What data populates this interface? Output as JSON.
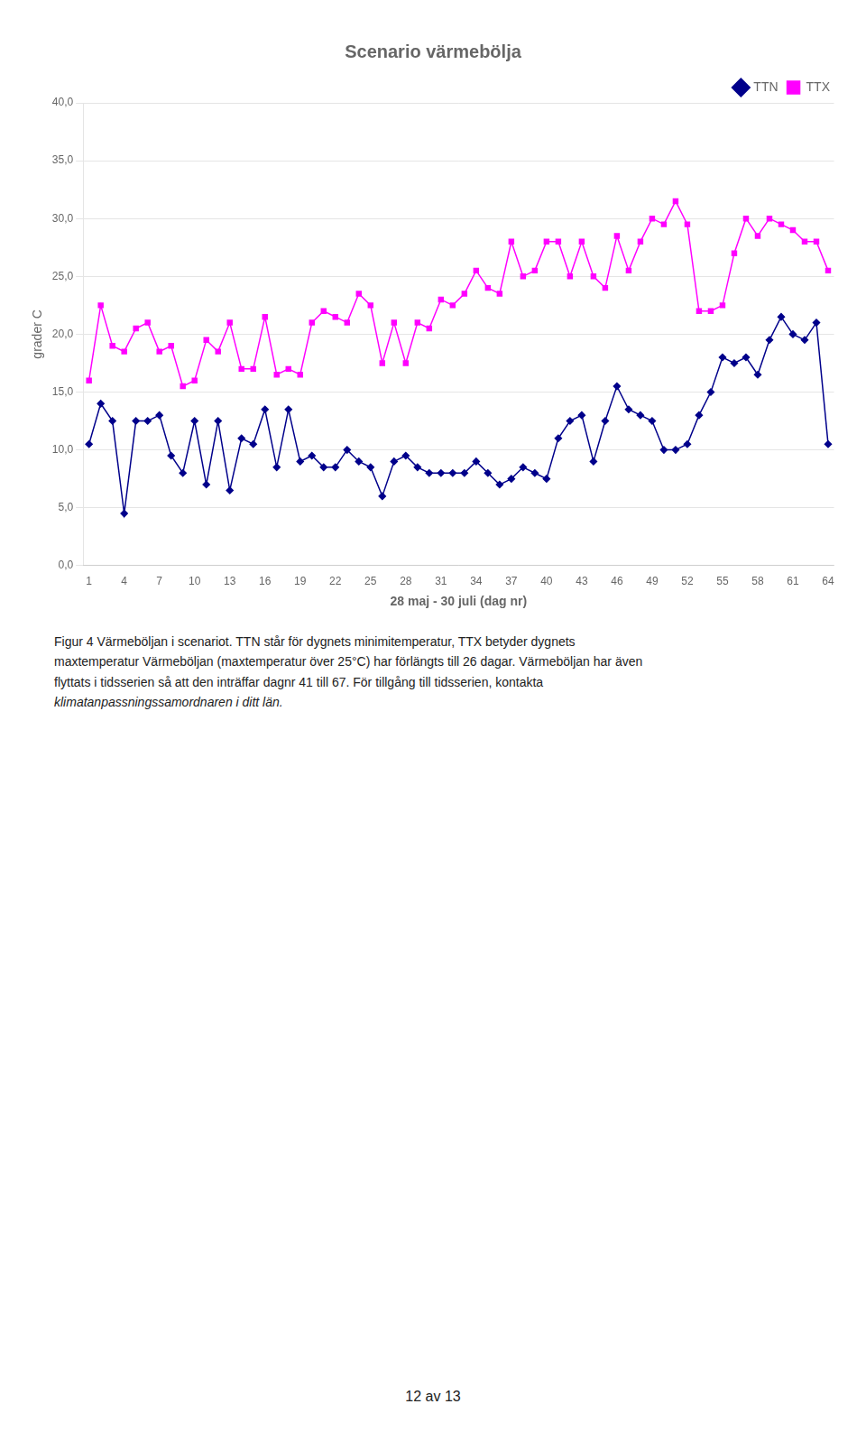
{
  "chart_data": {
    "type": "line",
    "title": "Scenario värmebölja",
    "x_label": "28 maj - 30 juli (dag nr)",
    "y_label": "grader C",
    "x": [
      1,
      2,
      3,
      4,
      5,
      6,
      7,
      8,
      9,
      10,
      11,
      12,
      13,
      14,
      15,
      16,
      17,
      18,
      19,
      20,
      21,
      22,
      23,
      24,
      25,
      26,
      27,
      28,
      29,
      30,
      31,
      32,
      33,
      34,
      35,
      36,
      37,
      38,
      39,
      40,
      41,
      42,
      43,
      44,
      45,
      46,
      47,
      48,
      49,
      50,
      51,
      52,
      53,
      54,
      55,
      56,
      57,
      58,
      59,
      60,
      61,
      62,
      63,
      64
    ],
    "series": [
      {
        "name": "TTN",
        "color": "#00008B",
        "marker": "diamond",
        "line_style": "solid",
        "values": [
          10.5,
          14.0,
          12.5,
          4.5,
          12.5,
          12.5,
          13.0,
          9.5,
          8.0,
          12.5,
          7.0,
          12.5,
          6.5,
          11.0,
          10.5,
          13.5,
          8.5,
          13.5,
          9.0,
          9.5,
          8.5,
          8.5,
          10.0,
          9.0,
          8.5,
          6.0,
          9.0,
          9.5,
          8.5,
          8.0,
          8.0,
          8.0,
          8.0,
          9.0,
          8.0,
          7.0,
          7.5,
          8.5,
          8.0,
          7.5,
          11.0,
          12.5,
          13.0,
          9.0,
          12.5,
          15.5,
          13.5,
          13.0,
          12.5,
          10.0,
          10.0,
          10.5,
          13.0,
          15.0,
          18.0,
          17.5,
          18.0,
          16.5,
          19.5,
          21.5,
          20.0,
          19.5,
          21.0,
          10.5
        ]
      },
      {
        "name": "TTX",
        "color": "#FF00FF",
        "marker": "square",
        "line_style": "solid",
        "values": [
          16.0,
          22.5,
          19.0,
          18.5,
          20.5,
          21.0,
          18.5,
          19.0,
          15.5,
          16.0,
          19.5,
          18.5,
          21.0,
          17.0,
          17.0,
          21.5,
          16.5,
          17.0,
          16.5,
          21.0,
          22.0,
          21.5,
          21.0,
          23.5,
          22.5,
          17.5,
          21.0,
          17.5,
          21.0,
          20.5,
          23.0,
          22.5,
          23.5,
          25.5,
          24.0,
          23.5,
          28.0,
          25.0,
          25.5,
          28.0,
          28.0,
          25.0,
          28.0,
          25.0,
          24.0,
          28.5,
          25.5,
          28.0,
          30.0,
          29.5,
          31.5,
          29.5,
          22.0,
          22.0,
          22.5,
          27.0,
          30.0,
          28.5,
          30.0,
          29.5,
          29.0,
          28.0,
          28.0,
          25.5
        ]
      }
    ],
    "xlim": [
      0.5,
      64.5
    ],
    "xticks": [
      1,
      4,
      7,
      10,
      13,
      16,
      19,
      22,
      25,
      28,
      31,
      34,
      37,
      40,
      43,
      46,
      49,
      52,
      55,
      58,
      61,
      64
    ],
    "ylim": [
      0.0,
      40.0
    ],
    "yticks": [
      {
        "value": 0,
        "label": "0,0"
      },
      {
        "value": 5,
        "label": "5,0"
      },
      {
        "value": 10,
        "label": "10,0"
      },
      {
        "value": 15,
        "label": "15,0"
      },
      {
        "value": 20,
        "label": "20,0"
      },
      {
        "value": 25,
        "label": "25,0"
      },
      {
        "value": 30,
        "label": "30,0"
      },
      {
        "value": 35,
        "label": "35,0"
      },
      {
        "value": 40,
        "label": "40,0"
      }
    ],
    "grid": "y",
    "legend": "upper right",
    "annotations": [
      "Figur 4 Värmeböljan i scenariot. TTN står för dygnets minimitemperatur, TTX betyder dygnets",
      "maxtemperatur Värmeböljan (maxtemperatur över 25°C) har förlängts till 26 dagar. Värmeböljan har även",
      "flyttats i tidsserien så att den inträffar dagnr 41 till 67. För tillgång till tidsserien, kontakta",
      "klimatanpassningssamordnaren i ditt län.",
      "12 av 13"
    ]
  }
}
